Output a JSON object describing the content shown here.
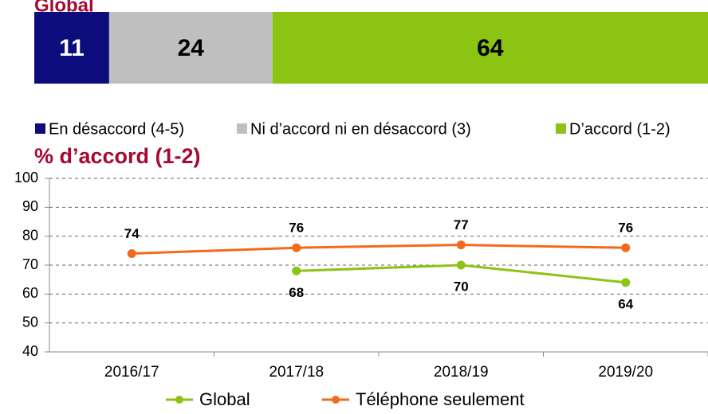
{
  "chart_data": [
    {
      "type": "stacked-bar",
      "title": "Global",
      "series": [
        {
          "name": "En désaccord (4-5)",
          "color": "#0c0c7c",
          "values": [
            11
          ]
        },
        {
          "name": "Ni d’accord ni en désaccord (3)",
          "color": "#bfbfbf",
          "values": [
            24
          ]
        },
        {
          "name": "D’accord (1-2)",
          "color": "#8cc414",
          "values": [
            64
          ]
        }
      ]
    },
    {
      "type": "line",
      "title": "% d’accord (1-2)",
      "categories": [
        "2016/17",
        "2017/18",
        "2018/19",
        "2019/20"
      ],
      "series": [
        {
          "name": "Global",
          "color": "#8cc414",
          "values": [
            null,
            68,
            70,
            64
          ]
        },
        {
          "name": "Téléphone seulement",
          "color": "#f26a1b",
          "values": [
            74,
            76,
            77,
            76
          ]
        }
      ],
      "ylim": [
        40,
        100
      ],
      "yticks": [
        40,
        50,
        60,
        70,
        80,
        90,
        100
      ],
      "grid": true
    }
  ]
}
